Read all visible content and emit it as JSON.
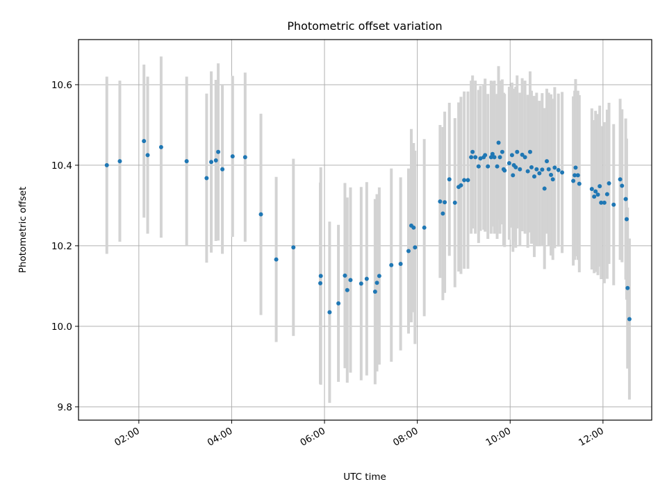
{
  "chart_data": {
    "type": "scatter",
    "title": "Photometric offset variation",
    "xlabel": "UTC time",
    "ylabel": "Photometric offset",
    "x_unit": "hours UTC (decimal)",
    "xlim": [
      0.7,
      13.05
    ],
    "ylim": [
      9.767,
      10.712
    ],
    "grid": true,
    "x_ticks": [
      {
        "value": 2,
        "label": "02:00"
      },
      {
        "value": 4,
        "label": "04:00"
      },
      {
        "value": 6,
        "label": "06:00"
      },
      {
        "value": 8,
        "label": "08:00"
      },
      {
        "value": 10,
        "label": "10:00"
      },
      {
        "value": 12,
        "label": "12:00"
      }
    ],
    "y_ticks": [
      {
        "value": 9.8,
        "label": "9.8"
      },
      {
        "value": 10.0,
        "label": "10.0"
      },
      {
        "value": 10.2,
        "label": "10.2"
      },
      {
        "value": 10.4,
        "label": "10.4"
      },
      {
        "value": 10.6,
        "label": "10.6"
      }
    ],
    "series": [
      {
        "name": "Photometric offset",
        "marker_color": "#1f77b4",
        "errorbar_color": "#d3d3d3",
        "points": [
          [
            1.31,
            10.4,
            0.22
          ],
          [
            1.59,
            10.41,
            0.2
          ],
          [
            2.11,
            10.46,
            0.19
          ],
          [
            2.19,
            10.425,
            0.195
          ],
          [
            2.48,
            10.445,
            0.225
          ],
          [
            3.03,
            10.41,
            0.21
          ],
          [
            3.46,
            10.368,
            0.21
          ],
          [
            3.56,
            10.408,
            0.225
          ],
          [
            3.66,
            10.412,
            0.2
          ],
          [
            3.71,
            10.433,
            0.22
          ],
          [
            3.8,
            10.39,
            0.21
          ],
          [
            4.02,
            10.422,
            0.2
          ],
          [
            4.29,
            10.42,
            0.21
          ],
          [
            4.63,
            10.278,
            0.25
          ],
          [
            4.96,
            10.166,
            0.205
          ],
          [
            5.33,
            10.196,
            0.22
          ],
          [
            5.91,
            10.107,
            0.25
          ],
          [
            5.92,
            10.125,
            0.27
          ],
          [
            6.11,
            10.035,
            0.225
          ],
          [
            6.3,
            10.057,
            0.195
          ],
          [
            6.44,
            10.126,
            0.23
          ],
          [
            6.49,
            10.09,
            0.23
          ],
          [
            6.56,
            10.115,
            0.23
          ],
          [
            6.79,
            10.106,
            0.24
          ],
          [
            6.91,
            10.118,
            0.24
          ],
          [
            7.09,
            10.086,
            0.23
          ],
          [
            7.13,
            10.108,
            0.22
          ],
          [
            7.18,
            10.125,
            0.22
          ],
          [
            7.44,
            10.152,
            0.24
          ],
          [
            7.64,
            10.155,
            0.215
          ],
          [
            7.81,
            10.187,
            0.205
          ],
          [
            7.87,
            10.25,
            0.24
          ],
          [
            7.92,
            10.245,
            0.21
          ],
          [
            7.95,
            10.196,
            0.24
          ],
          [
            8.15,
            10.245,
            0.22
          ],
          [
            8.49,
            10.31,
            0.19
          ],
          [
            8.55,
            10.28,
            0.215
          ],
          [
            8.59,
            10.308,
            0.225
          ],
          [
            8.69,
            10.365,
            0.19
          ],
          [
            8.81,
            10.307,
            0.21
          ],
          [
            8.89,
            10.346,
            0.21
          ],
          [
            8.94,
            10.35,
            0.22
          ],
          [
            9.01,
            10.363,
            0.22
          ],
          [
            9.09,
            10.363,
            0.22
          ],
          [
            9.16,
            10.42,
            0.19
          ],
          [
            9.19,
            10.433,
            0.19
          ],
          [
            9.25,
            10.42,
            0.19
          ],
          [
            9.32,
            10.397,
            0.19
          ],
          [
            9.36,
            10.417,
            0.18
          ],
          [
            9.43,
            10.42,
            0.18
          ],
          [
            9.46,
            10.425,
            0.19
          ],
          [
            9.52,
            10.397,
            0.18
          ],
          [
            9.59,
            10.42,
            0.19
          ],
          [
            9.62,
            10.428,
            0.18
          ],
          [
            9.66,
            10.42,
            0.19
          ],
          [
            9.72,
            10.397,
            0.18
          ],
          [
            9.75,
            10.456,
            0.19
          ],
          [
            9.78,
            10.42,
            0.19
          ],
          [
            9.83,
            10.433,
            0.18
          ],
          [
            9.86,
            10.39,
            0.19
          ],
          [
            9.88,
            10.387,
            0.19
          ],
          [
            9.98,
            10.405,
            0.19
          ],
          [
            10.04,
            10.425,
            0.18
          ],
          [
            10.06,
            10.375,
            0.19
          ],
          [
            10.08,
            10.4,
            0.19
          ],
          [
            10.12,
            10.395,
            0.2
          ],
          [
            10.15,
            10.433,
            0.19
          ],
          [
            10.21,
            10.39,
            0.19
          ],
          [
            10.26,
            10.426,
            0.19
          ],
          [
            10.32,
            10.42,
            0.19
          ],
          [
            10.38,
            10.385,
            0.19
          ],
          [
            10.43,
            10.433,
            0.2
          ],
          [
            10.46,
            10.395,
            0.19
          ],
          [
            10.52,
            10.372,
            0.2
          ],
          [
            10.57,
            10.39,
            0.19
          ],
          [
            10.63,
            10.38,
            0.18
          ],
          [
            10.69,
            10.389,
            0.19
          ],
          [
            10.74,
            10.342,
            0.2
          ],
          [
            10.79,
            10.41,
            0.18
          ],
          [
            10.83,
            10.39,
            0.19
          ],
          [
            10.88,
            10.376,
            0.2
          ],
          [
            10.92,
            10.365,
            0.2
          ],
          [
            10.96,
            10.394,
            0.2
          ],
          [
            11.04,
            10.388,
            0.19
          ],
          [
            11.12,
            10.382,
            0.2
          ],
          [
            11.36,
            10.361,
            0.21
          ],
          [
            11.39,
            10.375,
            0.21
          ],
          [
            11.41,
            10.394,
            0.22
          ],
          [
            11.46,
            10.375,
            0.21
          ],
          [
            11.49,
            10.354,
            0.22
          ],
          [
            11.76,
            10.341,
            0.2
          ],
          [
            11.81,
            10.322,
            0.19
          ],
          [
            11.84,
            10.335,
            0.2
          ],
          [
            11.89,
            10.327,
            0.2
          ],
          [
            11.93,
            10.348,
            0.2
          ],
          [
            11.96,
            10.307,
            0.19
          ],
          [
            12.03,
            10.307,
            0.2
          ],
          [
            12.09,
            10.328,
            0.21
          ],
          [
            12.13,
            10.355,
            0.2
          ],
          [
            12.23,
            10.302,
            0.2
          ],
          [
            12.37,
            10.365,
            0.2
          ],
          [
            12.41,
            10.349,
            0.19
          ],
          [
            12.49,
            10.316,
            0.2
          ],
          [
            12.51,
            10.266,
            0.2
          ],
          [
            12.53,
            10.095,
            0.2
          ],
          [
            12.57,
            10.018,
            0.2
          ]
        ]
      }
    ]
  }
}
